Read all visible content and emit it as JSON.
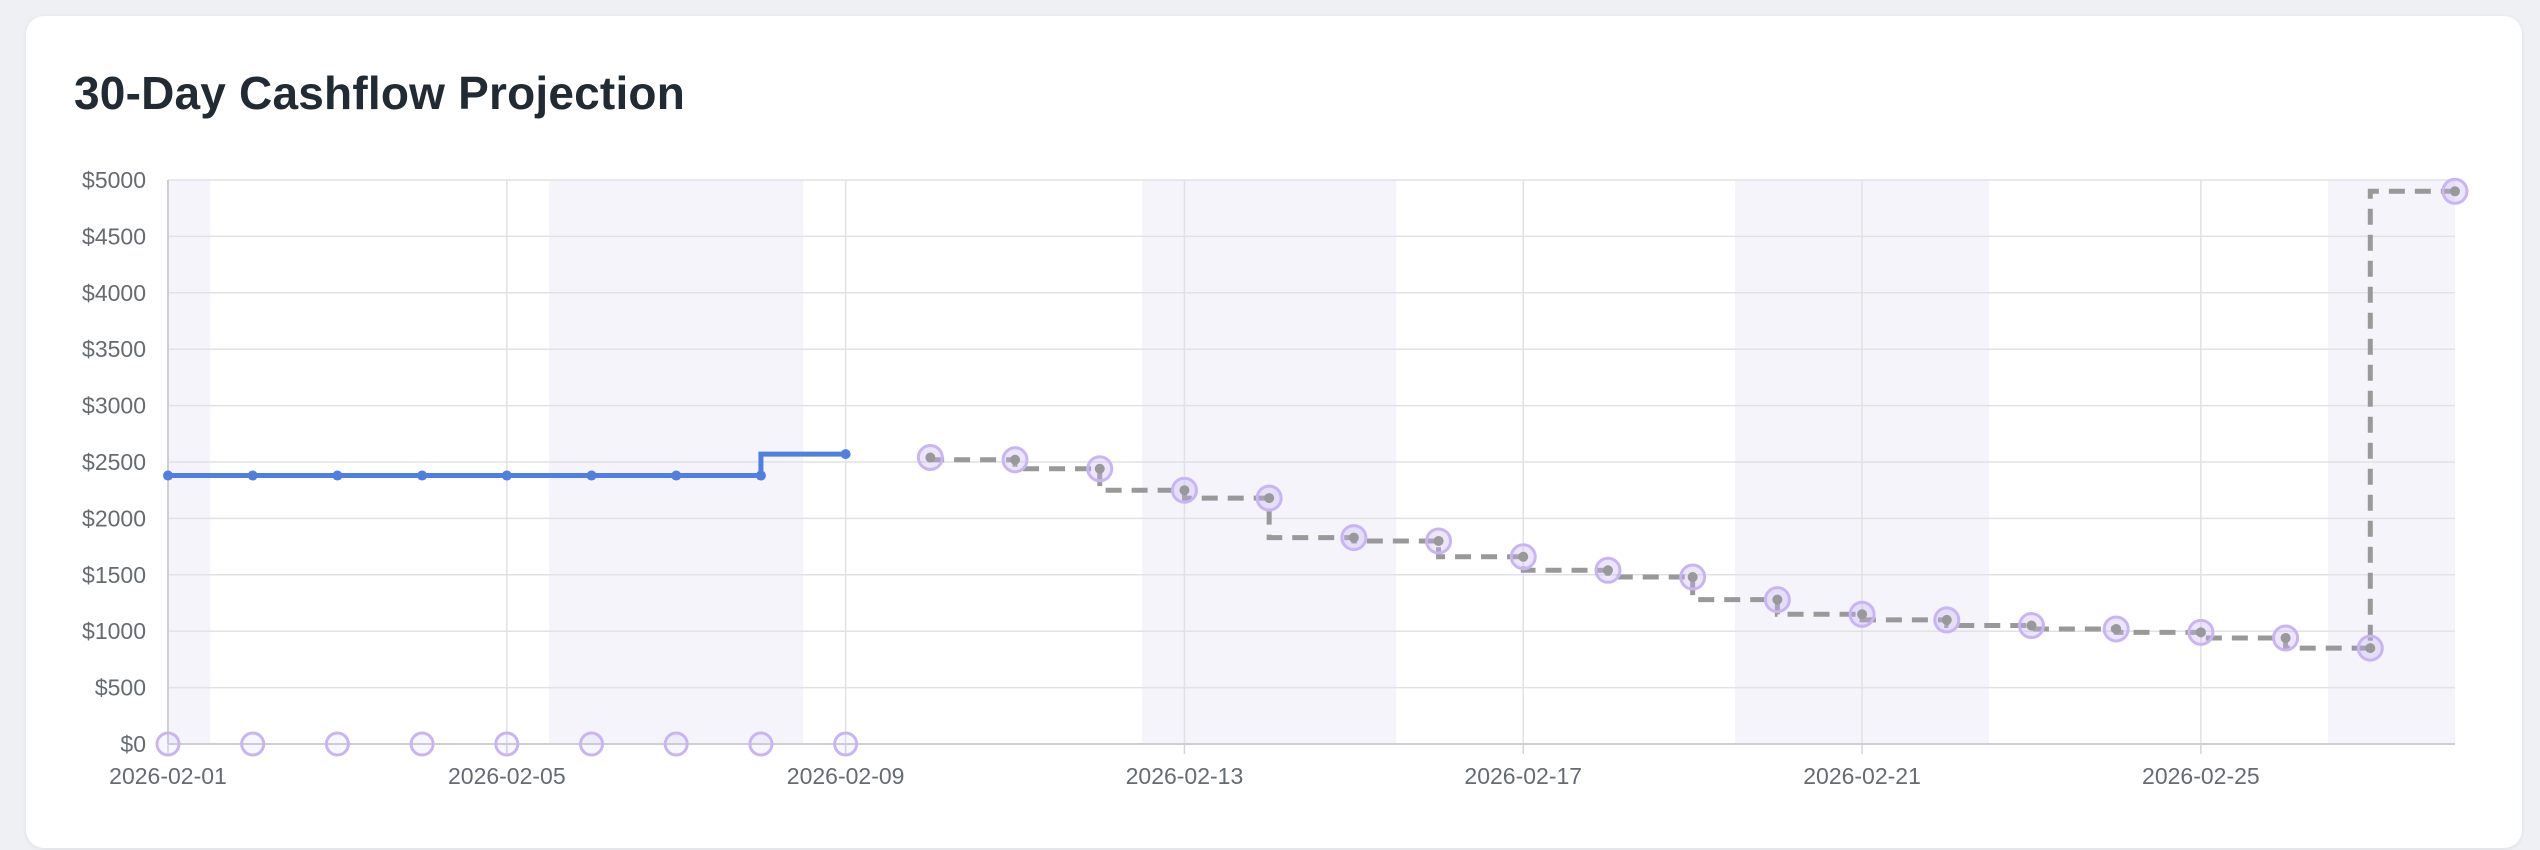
{
  "title": "30-Day Cashflow Projection",
  "chart_data": {
    "type": "line",
    "title": "30-Day Cashflow Projection",
    "xlabel": "",
    "ylabel": "",
    "ylim": [
      0,
      5000
    ],
    "yticks": [
      0,
      500,
      1000,
      1500,
      2000,
      2500,
      3000,
      3500,
      4000,
      4500,
      5000
    ],
    "ytick_prefix": "$",
    "xlim": [
      "2026-02-01",
      "2026-02-28"
    ],
    "xticks": [
      "2026-02-01",
      "2026-02-05",
      "2026-02-09",
      "2026-02-13",
      "2026-02-17",
      "2026-02-21",
      "2026-02-25"
    ],
    "grid": true,
    "legend": "none",
    "weekend_shading": [
      [
        "2026-01-31",
        "2026-02-01"
      ],
      [
        "2026-02-06",
        "2026-02-08"
      ],
      [
        "2026-02-13",
        "2026-02-15"
      ],
      [
        "2026-02-20",
        "2026-02-22"
      ],
      [
        "2026-02-27",
        "2026-02-28"
      ]
    ],
    "colors": {
      "actual": "#4f80e1",
      "projected": "#999999",
      "event_marker": "#c9b5f5",
      "weekend": "#f5f4fa"
    },
    "series": [
      {
        "style": "solid-step",
        "x": [
          "2026-02-01",
          "2026-02-02",
          "2026-02-03",
          "2026-02-04",
          "2026-02-05",
          "2026-02-06",
          "2026-02-07",
          "2026-02-08",
          "2026-02-09"
        ],
        "y": [
          2380,
          2380,
          2380,
          2380,
          2380,
          2380,
          2380,
          2380,
          2570
        ]
      },
      {
        "style": "dashed-step",
        "x": [
          "2026-02-10",
          "2026-02-11",
          "2026-02-12",
          "2026-02-13",
          "2026-02-14",
          "2026-02-15",
          "2026-02-16",
          "2026-02-17",
          "2026-02-18",
          "2026-02-19",
          "2026-02-20",
          "2026-02-21",
          "2026-02-22",
          "2026-02-23",
          "2026-02-24",
          "2026-02-25",
          "2026-02-26",
          "2026-02-27",
          "2026-02-28"
        ],
        "y": [
          2540,
          2520,
          2440,
          2250,
          2180,
          1830,
          1800,
          1660,
          1540,
          1480,
          1280,
          1150,
          1100,
          1050,
          1020,
          990,
          940,
          850,
          4900
        ]
      },
      {
        "style": "markers",
        "x": [
          "2026-02-01",
          "2026-02-02",
          "2026-02-03",
          "2026-02-04",
          "2026-02-05",
          "2026-02-06",
          "2026-02-07",
          "2026-02-08",
          "2026-02-09"
        ],
        "y": [
          0,
          0,
          0,
          0,
          0,
          0,
          0,
          0,
          0
        ]
      }
    ]
  }
}
